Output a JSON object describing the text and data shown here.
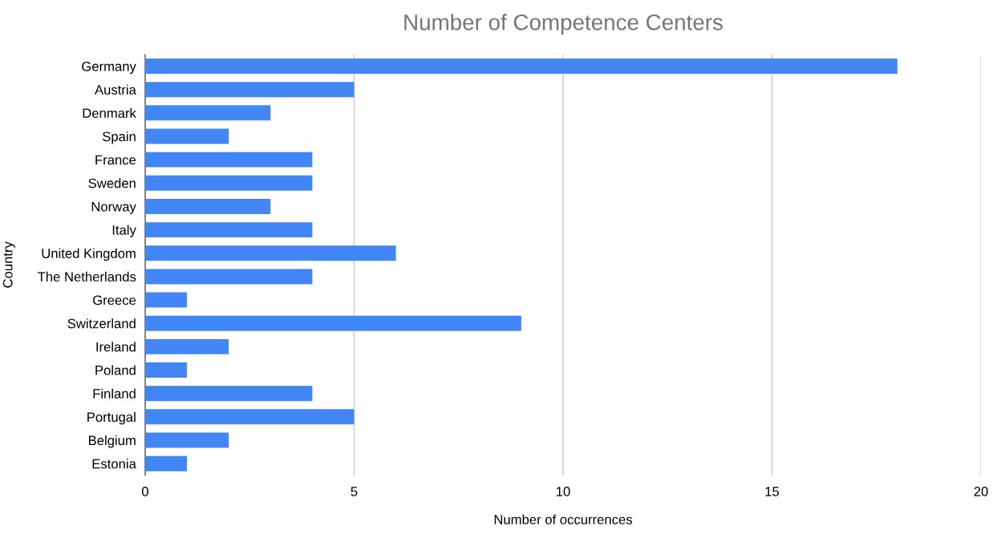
{
  "chart_data": {
    "type": "bar",
    "orientation": "horizontal",
    "title": "Number of Competence Centers",
    "xlabel": "Number of occurrences",
    "ylabel": "Country",
    "categories": [
      "Germany",
      "Austria",
      "Denmark",
      "Spain",
      "France",
      "Sweden",
      "Norway",
      "Italy",
      "United Kingdom",
      "The Netherlands",
      "Greece",
      "Switzerland",
      "Ireland",
      "Poland",
      "Finland",
      "Portugal",
      "Belgium",
      "Estonia"
    ],
    "values": [
      18,
      5,
      3,
      2,
      4,
      4,
      3,
      4,
      6,
      4,
      1,
      9,
      2,
      1,
      4,
      5,
      2,
      1
    ],
    "color": "#4285f4",
    "xlim": [
      0,
      20
    ],
    "xticks": [
      0,
      5,
      10,
      15,
      20
    ],
    "grid": "x",
    "legend": false
  }
}
